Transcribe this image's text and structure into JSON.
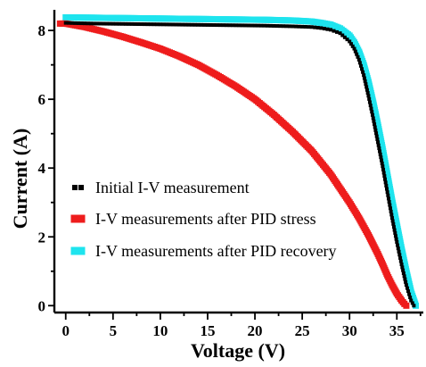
{
  "chart_data": {
    "type": "scatter",
    "xlabel": "Voltage (V)",
    "ylabel": "Current (A)",
    "xlim": [
      -1.2,
      37.8
    ],
    "ylim": [
      -0.2,
      8.6
    ],
    "xticks": [
      "0",
      "5",
      "10",
      "15",
      "20",
      "25",
      "30",
      "35"
    ],
    "xtick_values": [
      0,
      5,
      10,
      15,
      20,
      25,
      30,
      35
    ],
    "yticks": [
      "0",
      "2",
      "4",
      "6",
      "8"
    ],
    "ytick_values": [
      0,
      2,
      4,
      6,
      8
    ],
    "grid": false,
    "legend_position": "bottom-left",
    "series": [
      {
        "name": "Initial I-V measurement",
        "color": "#000000",
        "marker": "square",
        "x": [
          0,
          3,
          6,
          9,
          12,
          15,
          18,
          21,
          24,
          26,
          27,
          28,
          29,
          30,
          30.5,
          31,
          31.5,
          32,
          32.5,
          33,
          33.5,
          34,
          34.5,
          35,
          35.5,
          36,
          36.5,
          36.8
        ],
        "y": [
          8.22,
          8.2,
          8.19,
          8.18,
          8.17,
          8.16,
          8.15,
          8.14,
          8.12,
          8.1,
          8.07,
          8.02,
          7.92,
          7.68,
          7.47,
          7.15,
          6.7,
          6.1,
          5.45,
          4.75,
          4.05,
          3.3,
          2.55,
          1.85,
          1.2,
          0.6,
          0.15,
          0.0
        ]
      },
      {
        "name": "I-V measurements after PID stress",
        "color": "#ee1c1c",
        "marker": "square",
        "x": [
          -0.6,
          0,
          2,
          4,
          6,
          8,
          10,
          12,
          14,
          16,
          18,
          20,
          22,
          24,
          26,
          28,
          30,
          31,
          32,
          33,
          33.5,
          34,
          34.5,
          35,
          35.5,
          35.8,
          36.0
        ],
        "y": [
          8.2,
          8.2,
          8.1,
          7.97,
          7.82,
          7.65,
          7.47,
          7.25,
          7.0,
          6.7,
          6.37,
          6.0,
          5.55,
          5.05,
          4.5,
          3.82,
          3.0,
          2.55,
          2.05,
          1.5,
          1.2,
          0.88,
          0.6,
          0.35,
          0.15,
          0.05,
          0.0
        ]
      },
      {
        "name": "I-V measurements after PID recovery",
        "color": "#1ee4ee",
        "marker": "square",
        "x": [
          0,
          3,
          6,
          9,
          12,
          15,
          18,
          21,
          24,
          26,
          27,
          28,
          29,
          30,
          30.5,
          31,
          31.5,
          32,
          32.5,
          33,
          33.5,
          34,
          34.5,
          35,
          35.5,
          36,
          36.5,
          37.0
        ],
        "y": [
          8.38,
          8.37,
          8.36,
          8.35,
          8.34,
          8.33,
          8.32,
          8.31,
          8.29,
          8.26,
          8.22,
          8.17,
          8.06,
          7.85,
          7.65,
          7.38,
          7.0,
          6.5,
          5.9,
          5.25,
          4.55,
          3.8,
          3.05,
          2.35,
          1.65,
          1.0,
          0.4,
          0.0
        ]
      }
    ]
  }
}
